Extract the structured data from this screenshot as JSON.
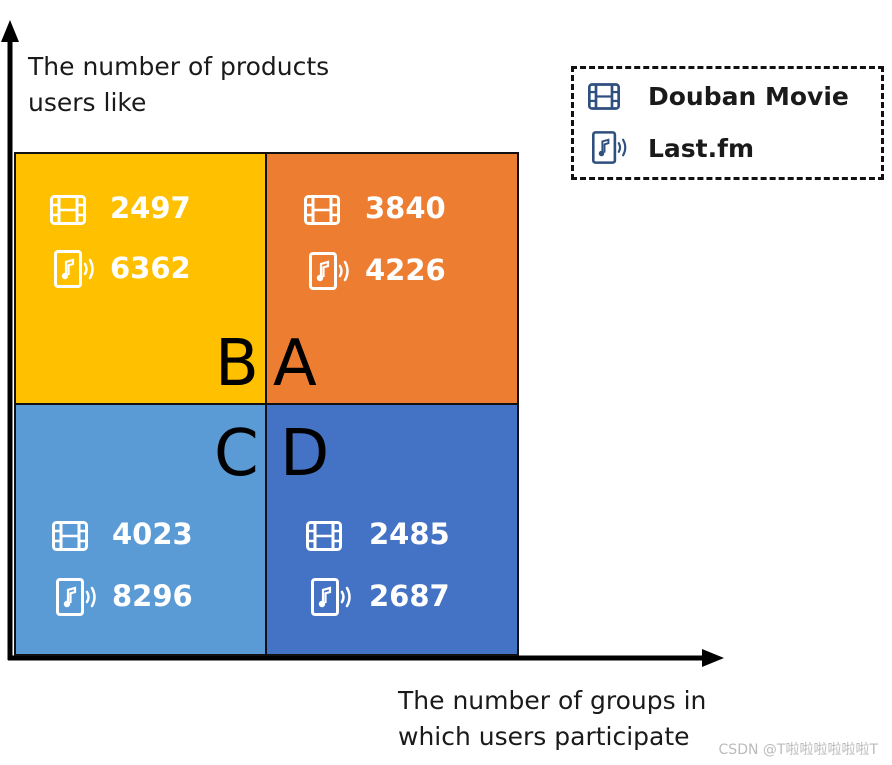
{
  "axes": {
    "y_label_line1": "The number of products",
    "y_label_line2": "users like",
    "x_label_line1": "The number of groups in",
    "x_label_line2": "which users participate"
  },
  "legend": {
    "items": [
      {
        "label": "Douban Movie",
        "icon": "film-icon"
      },
      {
        "label": "Last.fm",
        "icon": "music-file-icon"
      }
    ]
  },
  "quadrants": {
    "B": {
      "letter": "B",
      "color": "#FFC000",
      "movie": "2497",
      "music": "6362"
    },
    "A": {
      "letter": "A",
      "color": "#ED7D31",
      "movie": "3840",
      "music": "4226"
    },
    "C": {
      "letter": "C",
      "color": "#5B9BD5",
      "movie": "4023",
      "music": "8296"
    },
    "D": {
      "letter": "D",
      "color": "#4472C4",
      "movie": "2485",
      "music": "2687"
    }
  },
  "watermark": "CSDN @T啦啦啦啦啦啦T"
}
